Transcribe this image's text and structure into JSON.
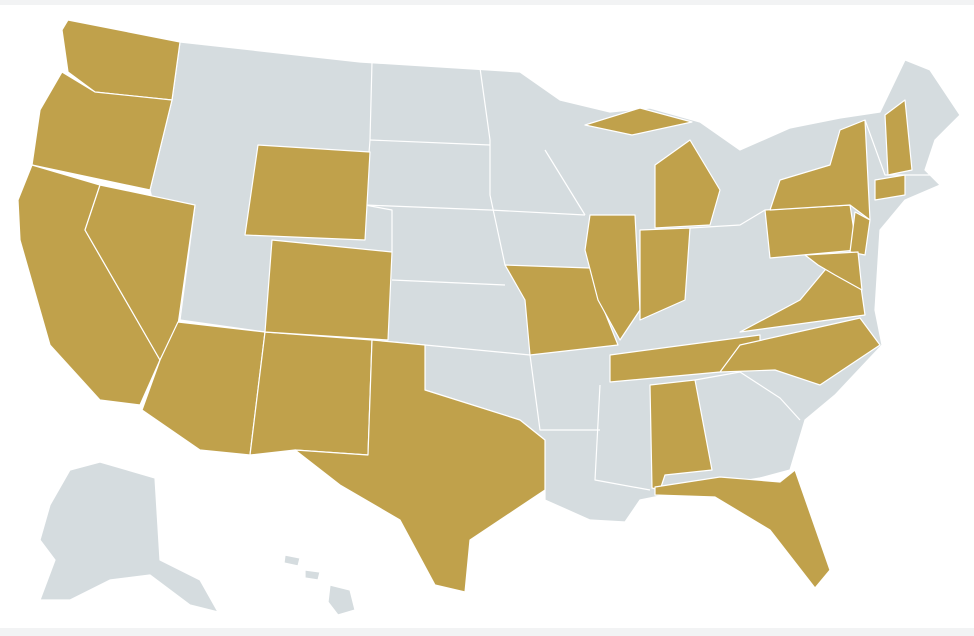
{
  "map": {
    "highlight_color": "#c0a14b",
    "base_color": "#d5dcdf",
    "border_color": "#ffffff",
    "background_band_color": "#f2f3f4"
  }
}
